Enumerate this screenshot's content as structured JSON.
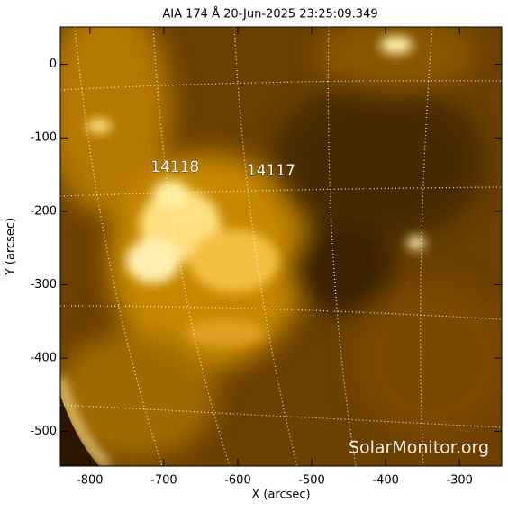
{
  "chart_data": {
    "type": "image",
    "title": "AIA 174 Å 20-Jun-2025 23:25:09.349",
    "x_label": "X (arcsec)",
    "y_label": "Y (arcsec)",
    "xlim": [
      -840,
      -243
    ],
    "ylim": [
      -547,
      51
    ],
    "xticks": [
      -800,
      -700,
      -600,
      -500,
      -400,
      -300
    ],
    "yticks": [
      -500,
      -400,
      -300,
      -200,
      -100,
      0
    ],
    "annotations": [
      {
        "text": "14118",
        "x": -685,
        "y": -140
      },
      {
        "text": "14117",
        "x": -555,
        "y": -145
      }
    ],
    "watermark": "SolarMonitor.org"
  }
}
